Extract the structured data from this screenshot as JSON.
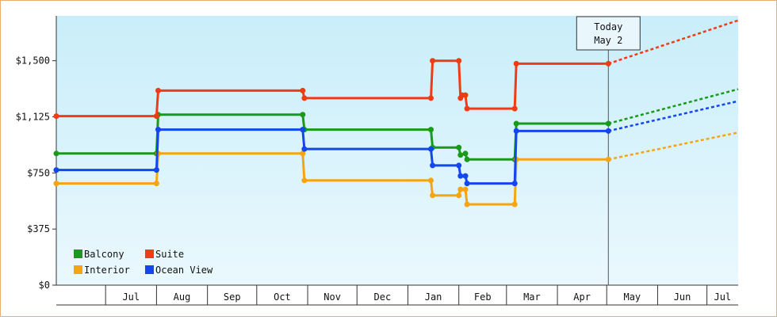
{
  "chart_data": {
    "type": "line",
    "title": "",
    "xlabel": "",
    "ylabel": "",
    "ylim": [
      0,
      1800
    ],
    "y_ticks": [
      "$0",
      "$375",
      "$750",
      "$1,125",
      "$1,500"
    ],
    "y_tick_values": [
      0,
      375,
      750,
      1125,
      1500
    ],
    "x_range": [
      "2019-06-01",
      "2020-07-20"
    ],
    "months": [
      {
        "label": "Jul",
        "date": "2019-07-01"
      },
      {
        "label": "Aug",
        "date": "2019-08-01"
      },
      {
        "label": "Sep",
        "date": "2019-09-01"
      },
      {
        "label": "Oct",
        "date": "2019-10-01"
      },
      {
        "label": "Nov",
        "date": "2019-11-01"
      },
      {
        "label": "Dec",
        "date": "2019-12-01"
      },
      {
        "label": "Jan",
        "date": "2020-01-01"
      },
      {
        "label": "Feb",
        "date": "2020-02-01"
      },
      {
        "label": "Mar",
        "date": "2020-03-01"
      },
      {
        "label": "Apr",
        "date": "2020-04-01"
      },
      {
        "label": "May",
        "date": "2020-05-01"
      },
      {
        "label": "Jun",
        "date": "2020-06-01"
      },
      {
        "label": "Jul",
        "date": "2020-07-01"
      }
    ],
    "today": {
      "line1": "Today",
      "line2": "May 2",
      "date": "2020-05-02"
    },
    "legend": "bottom-left",
    "series": [
      {
        "name": "Balcony",
        "color": "#1a9a1a",
        "points": [
          {
            "x": "2019-06-01",
            "y": 880
          },
          {
            "x": "2019-08-01",
            "y": 880
          },
          {
            "x": "2019-08-02",
            "y": 1140
          },
          {
            "x": "2019-10-29",
            "y": 1140
          },
          {
            "x": "2019-10-30",
            "y": 1040
          },
          {
            "x": "2020-01-15",
            "y": 1040
          },
          {
            "x": "2020-01-16",
            "y": 920
          },
          {
            "x": "2020-02-01",
            "y": 920
          },
          {
            "x": "2020-02-02",
            "y": 870
          },
          {
            "x": "2020-02-05",
            "y": 880
          },
          {
            "x": "2020-02-06",
            "y": 840
          },
          {
            "x": "2020-03-06",
            "y": 840
          },
          {
            "x": "2020-03-07",
            "y": 1080
          },
          {
            "x": "2020-05-02",
            "y": 1080
          }
        ],
        "forecast": [
          {
            "x": "2020-05-02",
            "y": 1080
          },
          {
            "x": "2020-07-20",
            "y": 1310
          }
        ]
      },
      {
        "name": "Suite",
        "color": "#f03c14",
        "points": [
          {
            "x": "2019-06-01",
            "y": 1130
          },
          {
            "x": "2019-08-01",
            "y": 1130
          },
          {
            "x": "2019-08-02",
            "y": 1300
          },
          {
            "x": "2019-10-29",
            "y": 1300
          },
          {
            "x": "2019-10-30",
            "y": 1250
          },
          {
            "x": "2020-01-15",
            "y": 1250
          },
          {
            "x": "2020-01-16",
            "y": 1500
          },
          {
            "x": "2020-02-01",
            "y": 1500
          },
          {
            "x": "2020-02-02",
            "y": 1250
          },
          {
            "x": "2020-02-03",
            "y": 1270
          },
          {
            "x": "2020-02-05",
            "y": 1270
          },
          {
            "x": "2020-02-06",
            "y": 1180
          },
          {
            "x": "2020-03-06",
            "y": 1180
          },
          {
            "x": "2020-03-07",
            "y": 1480
          },
          {
            "x": "2020-05-02",
            "y": 1480
          }
        ],
        "forecast": [
          {
            "x": "2020-05-02",
            "y": 1480
          },
          {
            "x": "2020-07-20",
            "y": 1770
          }
        ]
      },
      {
        "name": "Interior",
        "color": "#f5a514",
        "points": [
          {
            "x": "2019-06-01",
            "y": 680
          },
          {
            "x": "2019-08-01",
            "y": 680
          },
          {
            "x": "2019-08-02",
            "y": 880
          },
          {
            "x": "2019-10-29",
            "y": 880
          },
          {
            "x": "2019-10-30",
            "y": 700
          },
          {
            "x": "2020-01-15",
            "y": 700
          },
          {
            "x": "2020-01-16",
            "y": 600
          },
          {
            "x": "2020-02-01",
            "y": 600
          },
          {
            "x": "2020-02-02",
            "y": 640
          },
          {
            "x": "2020-02-05",
            "y": 640
          },
          {
            "x": "2020-02-06",
            "y": 540
          },
          {
            "x": "2020-03-06",
            "y": 540
          },
          {
            "x": "2020-03-07",
            "y": 840
          },
          {
            "x": "2020-05-02",
            "y": 840
          }
        ],
        "forecast": [
          {
            "x": "2020-05-02",
            "y": 840
          },
          {
            "x": "2020-07-20",
            "y": 1020
          }
        ]
      },
      {
        "name": "Ocean View",
        "color": "#1446f0",
        "points": [
          {
            "x": "2019-06-01",
            "y": 770
          },
          {
            "x": "2019-08-01",
            "y": 770
          },
          {
            "x": "2019-08-02",
            "y": 1040
          },
          {
            "x": "2019-10-29",
            "y": 1040
          },
          {
            "x": "2019-10-30",
            "y": 910
          },
          {
            "x": "2020-01-15",
            "y": 910
          },
          {
            "x": "2020-01-16",
            "y": 800
          },
          {
            "x": "2020-02-01",
            "y": 800
          },
          {
            "x": "2020-02-02",
            "y": 730
          },
          {
            "x": "2020-02-05",
            "y": 730
          },
          {
            "x": "2020-02-06",
            "y": 680
          },
          {
            "x": "2020-03-06",
            "y": 680
          },
          {
            "x": "2020-03-07",
            "y": 1030
          },
          {
            "x": "2020-05-02",
            "y": 1030
          }
        ],
        "forecast": [
          {
            "x": "2020-05-02",
            "y": 1030
          },
          {
            "x": "2020-07-20",
            "y": 1230
          }
        ]
      }
    ]
  }
}
